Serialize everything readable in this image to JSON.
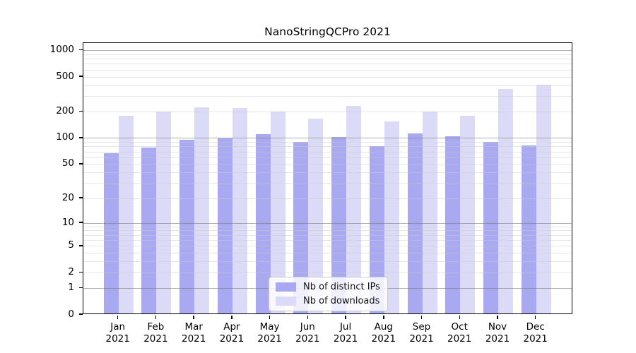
{
  "title": "NanoStringQCPro 2021",
  "chart_data": {
    "type": "bar",
    "title": "NanoStringQCPro 2021",
    "x_months": [
      "Jan",
      "Feb",
      "Mar",
      "Apr",
      "May",
      "Jun",
      "Jul",
      "Aug",
      "Sep",
      "Oct",
      "Nov",
      "Dec"
    ],
    "x_year": "2021",
    "series": [
      {
        "name": "Nb of distinct IPs",
        "color": "#a9a9f2",
        "values": [
          65,
          75,
          93,
          97,
          108,
          87,
          99,
          78,
          110,
          102,
          88,
          80
        ]
      },
      {
        "name": "Nb of downloads",
        "color": "#dbdbf8",
        "values": [
          175,
          195,
          217,
          212,
          194,
          162,
          227,
          150,
          195,
          175,
          350,
          395
        ]
      }
    ],
    "y_ticks": [
      0,
      1,
      2,
      5,
      10,
      20,
      50,
      100,
      200,
      500,
      1000
    ],
    "y_scale": "log1p",
    "ylim": [
      0,
      1215
    ],
    "grid": "on",
    "legend_position": "lower center"
  },
  "colors": {
    "major_grid": "#7d7d7d",
    "minor_grid": "#c8c8c8",
    "spine": "#000000",
    "background": "#ffffff"
  }
}
